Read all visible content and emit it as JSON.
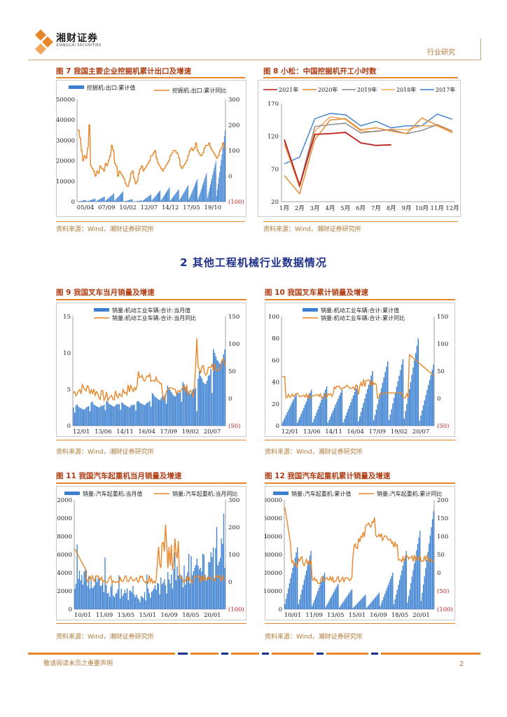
{
  "header": {
    "brand": "湘财证券",
    "brand_sub": "XIANGCAI SECURITIES",
    "report_type": "行业研究",
    "brand_color": "#e8862a"
  },
  "section_heading": "2 其他工程机械行业数据情况",
  "source_note": "资料来源：Wind，湘财证券研究所",
  "footer": {
    "disclaimer": "敬请阅读末页之重要声明",
    "page_number": "2"
  },
  "figures": [
    {
      "id": "fig7",
      "title": "图 7 我国主要企业挖掘机累计出口及增速"
    },
    {
      "id": "fig8",
      "title": "图 8 小松：中国挖掘机开工小时数"
    },
    {
      "id": "fig9",
      "title": "图 9 我国叉车当月销量及增速"
    },
    {
      "id": "fig10",
      "title": "图 10 我国叉车累计销量及增速"
    },
    {
      "id": "fig11",
      "title": "图 11 我国汽车起重机当月销量及增速"
    },
    {
      "id": "fig12",
      "title": "图 12 我国汽车起重机累计销量及增速"
    }
  ],
  "chart_data": [
    {
      "id": "fig7",
      "type": "bar+line",
      "legend": [
        "挖掘机:出口:累计值",
        "挖掘机:出口:累计同比"
      ],
      "x_ticks": [
        "05/04",
        "07/09",
        "10/02",
        "12/07",
        "14/12",
        "17/05",
        "19/10"
      ],
      "y_left": {
        "ylim": [
          0,
          50000
        ],
        "ticks": [
          "0",
          "10000",
          "20000",
          "30000",
          "40000",
          "50000"
        ]
      },
      "y_right": {
        "ylim": [
          -100,
          300
        ],
        "ticks": [
          "(100)",
          "0",
          "100",
          "200",
          "300"
        ]
      },
      "bar_color": "#3a7fd0",
      "line_color": "#e8862a",
      "bars_monthly_cumulative": {
        "start_year_index": 0,
        "n_years": 16,
        "first_year_peaks": [
          500,
          1800,
          3000,
          4200,
          5000,
          4000,
          1000,
          500,
          1500,
          3200,
          4500,
          6500,
          6500,
          7000,
          10000,
          12000,
          12500,
          13000,
          14500,
          16000,
          18000,
          22000,
          23000,
          24000,
          26000,
          28000,
          30000,
          32000,
          34000,
          35000
        ]
      },
      "line_values": [
        180,
        150,
        100,
        60,
        80,
        70,
        110,
        200,
        40,
        30,
        20,
        0,
        20,
        10,
        40,
        30,
        20,
        50,
        40,
        60,
        80,
        120,
        100,
        50,
        40,
        0,
        20,
        10,
        0,
        -10,
        -30,
        -40,
        -20,
        10,
        20,
        -10,
        -30,
        -20,
        10,
        30,
        40,
        20,
        30,
        40,
        50,
        60,
        80,
        90,
        100,
        70,
        50,
        40,
        30,
        20,
        30,
        40,
        50,
        60,
        80,
        90,
        100,
        100,
        90,
        70,
        40,
        30,
        40,
        50,
        60,
        80,
        100,
        110,
        100,
        110,
        130,
        100,
        90,
        80,
        90,
        110,
        120,
        120,
        130,
        110,
        100,
        90,
        80,
        70,
        80,
        100,
        110,
        130,
        110
      ]
    },
    {
      "id": "fig8",
      "type": "line",
      "legend": [
        "2021年",
        "2020年",
        "2019年",
        "2018年",
        "2017年"
      ],
      "categories": [
        "1月",
        "2月",
        "3月",
        "4月",
        "5月",
        "6月",
        "7月",
        "8月",
        "9月",
        "10月",
        "11月",
        "12月"
      ],
      "ylim": [
        20,
        170
      ],
      "y_ticks": [
        "20",
        "70",
        "120",
        "170"
      ],
      "series": [
        {
          "name": "2021年",
          "color": "#c0201c",
          "values": [
            115,
            45,
            123,
            124,
            126,
            110,
            106,
            107,
            null,
            null,
            null,
            null
          ]
        },
        {
          "name": "2020年",
          "color": "#e8862a",
          "values": [
            60,
            32,
            115,
            145,
            147,
            130,
            133,
            128,
            124,
            148,
            137,
            127
          ]
        },
        {
          "name": "2019年",
          "color": "#888888",
          "values": [
            113,
            45,
            135,
            138,
            140,
            125,
            128,
            130,
            124,
            129,
            138,
            128
          ]
        },
        {
          "name": "2018年",
          "color": "#f2a65a",
          "values": [
            108,
            42,
            128,
            150,
            146,
            128,
            127,
            131,
            130,
            136,
            136,
            125
          ]
        },
        {
          "name": "2017年",
          "color": "#3a7fd0",
          "values": [
            78,
            88,
            147,
            155,
            153,
            136,
            143,
            133,
            136,
            136,
            154,
            146
          ]
        }
      ]
    },
    {
      "id": "fig9",
      "type": "bar+line",
      "legend": [
        "销量:机动工业车辆:合计:当月值",
        "销量:机动工业车辆:合计:当月同比"
      ],
      "x_ticks": [
        "12/01",
        "13/06",
        "14/11",
        "16/04",
        "17/09",
        "19/02",
        "20/07"
      ],
      "y_left": {
        "ylim": [
          0,
          15
        ],
        "ticks": [
          "0",
          "5",
          "10",
          "15"
        ]
      },
      "y_right": {
        "ylim": [
          -50,
          150
        ],
        "ticks": [
          "(50)",
          "0",
          "50",
          "100",
          "150"
        ]
      },
      "bar_color": "#3a7fd0",
      "line_color": "#e8862a",
      "bar_values": [
        2.5,
        1.8,
        2.8,
        2.9,
        2.6,
        2.5,
        2.4,
        2.3,
        2.2,
        2.3,
        2.5,
        2.6,
        2.7,
        2.0,
        3.2,
        3.3,
        2.9,
        2.8,
        2.7,
        2.6,
        2.5,
        2.6,
        2.8,
        2.7,
        2.9,
        2.1,
        3.4,
        3.3,
        3.0,
        2.9,
        2.8,
        2.7,
        2.6,
        2.8,
        3.0,
        2.9,
        3.0,
        2.2,
        3.2,
        3.1,
        2.9,
        2.8,
        2.7,
        2.6,
        2.5,
        2.7,
        2.9,
        2.8,
        2.9,
        2.1,
        3.3,
        3.4,
        3.2,
        3.1,
        3.0,
        2.9,
        2.8,
        3.0,
        3.2,
        3.2,
        3.4,
        2.6,
        4.5,
        4.3,
        4.0,
        3.9,
        3.7,
        3.6,
        3.5,
        3.8,
        4.1,
        4.0,
        4.3,
        3.0,
        5.5,
        5.2,
        4.9,
        4.6,
        4.3,
        4.1,
        4.0,
        4.3,
        4.6,
        4.5,
        4.7,
        3.3,
        6.0,
        5.7,
        5.3,
        5.0,
        4.7,
        4.5,
        4.4,
        4.7,
        5.0,
        5.0,
        5.2,
        2.0,
        6.5,
        7.5,
        6.8,
        6.5,
        6.0,
        5.8,
        5.7,
        6.2,
        6.8,
        7.0,
        7.8,
        4.5,
        10.5,
        10.0,
        9.5,
        9.0,
        8.8,
        8.5,
        8.5,
        9.0,
        9.8,
        10.5
      ]
    },
    {
      "id": "fig10",
      "type": "bar+line",
      "legend": [
        "销量:机动工业车辆:合计:累计值",
        "销量:机动工业车辆:合计:累计同比"
      ],
      "x_ticks": [
        "12/01",
        "13/06",
        "14/11",
        "16/04",
        "17/09",
        "19/02",
        "20/07"
      ],
      "y_left": {
        "ylim": [
          0,
          100
        ],
        "ticks": [
          "0",
          "20",
          "40",
          "60",
          "80",
          "100"
        ]
      },
      "y_right": {
        "ylim": [
          -50,
          150
        ],
        "ticks": [
          "(50)",
          "0",
          "50",
          "100",
          "150"
        ]
      },
      "bar_color": "#3a7fd0",
      "line_color": "#e8862a",
      "annual_totals": [
        29,
        33,
        36,
        33,
        37,
        50,
        59,
        61,
        80,
        56
      ]
    },
    {
      "id": "fig11",
      "type": "bar+line",
      "legend": [
        "销量:汽车起重机:当月值",
        "销量:汽车起重机:当月同比"
      ],
      "x_ticks": [
        "10/01",
        "11/09",
        "13/05",
        "15/01",
        "16/09",
        "18/05",
        "20/01"
      ],
      "y_left": {
        "ylim": [
          0,
          12000
        ],
        "ticks": [
          "0",
          "2000",
          "4000",
          "6000",
          "8000",
          "10000",
          "12000"
        ]
      },
      "y_right": {
        "ylim": [
          -100,
          300
        ],
        "ticks": [
          "(100)",
          "0",
          "100",
          "200",
          "300"
        ]
      },
      "bar_color": "#3a7fd0",
      "line_color": "#e8862a"
    },
    {
      "id": "fig12",
      "type": "bar+line",
      "legend": [
        "销量:汽车起重机:累计值",
        "销量:汽车起重机:累计同比"
      ],
      "x_ticks": [
        "10/01",
        "11/09",
        "13/05",
        "15/01",
        "16/09",
        "18/05",
        "20/01"
      ],
      "y_left": {
        "ylim": [
          0,
          60000
        ],
        "ticks": [
          "0",
          "10000",
          "20000",
          "30000",
          "40000",
          "50000",
          "60000"
        ]
      },
      "y_right": {
        "ylim": [
          -100,
          200
        ],
        "ticks": [
          "(100)",
          "(50)",
          "0",
          "50",
          "100",
          "150",
          "200"
        ]
      },
      "bar_color": "#3a7fd0",
      "line_color": "#e8862a",
      "annual_totals": [
        34000,
        32000,
        20000,
        14000,
        11000,
        8000,
        9000,
        20000,
        32000,
        43000,
        54000
      ]
    }
  ]
}
